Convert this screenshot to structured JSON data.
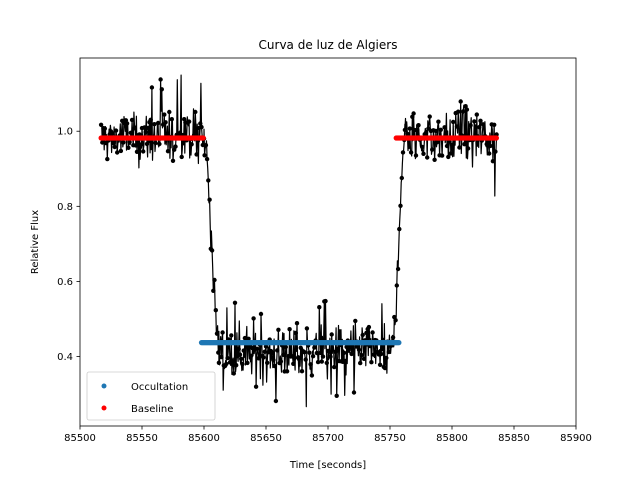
{
  "chart_data": {
    "type": "scatter",
    "title": "Curva de luz de Algiers",
    "xlabel": "Time [seconds]",
    "ylabel": "Relative Flux",
    "xlim": [
      85500,
      85900
    ],
    "ylim": [
      0.215,
      1.195
    ],
    "xticks": [
      85500,
      85550,
      85600,
      85650,
      85700,
      85750,
      85800,
      85850,
      85900
    ],
    "yticks": [
      0.4,
      0.6,
      0.8,
      1.0
    ],
    "grid": false,
    "legend_position": "bottom-left",
    "light_curve": {
      "color": "#000000",
      "pre_baseline": {
        "x_range": [
          85517,
          85600
        ],
        "mean": 0.982,
        "min": 0.81,
        "max": 1.15
      },
      "ingress": {
        "x_range": [
          85600,
          85612
        ],
        "from": 0.98,
        "to": 0.44
      },
      "occultation": {
        "x_range": [
          85612,
          85752
        ],
        "mean": 0.41,
        "min": 0.26,
        "max": 0.55
      },
      "egress": {
        "x_range": [
          85752,
          85762
        ],
        "from": 0.44,
        "to": 0.98
      },
      "post_baseline": {
        "x_range": [
          85762,
          85836
        ],
        "mean": 0.982,
        "min": 0.78,
        "max": 1.09
      }
    },
    "series": [
      {
        "name": "Occultation",
        "color": "#1f77b4",
        "x_range": [
          85598,
          85758
        ],
        "value": 0.437
      },
      {
        "name": "Baseline",
        "color": "#ff0000",
        "segments": [
          [
            85517,
            85600
          ],
          [
            85755,
            85836
          ]
        ],
        "value": 0.982
      }
    ]
  }
}
